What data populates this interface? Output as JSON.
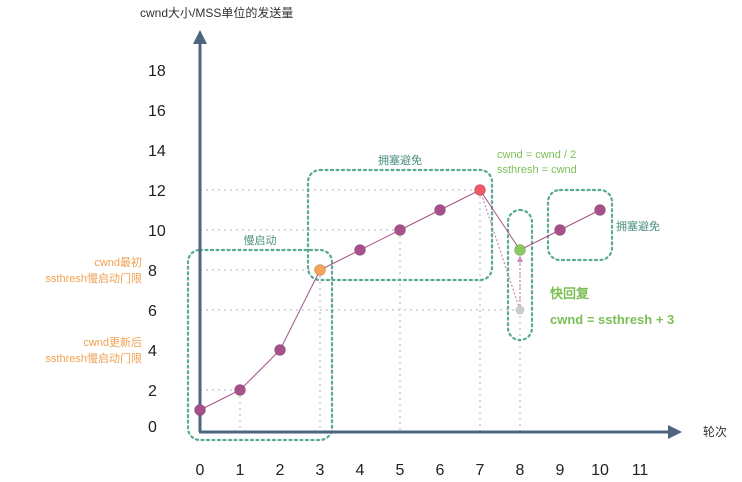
{
  "chart_data": {
    "type": "line",
    "ylabel": "cwnd大小/MSS单位的发送量",
    "xlabel": "轮次",
    "x_ticks": [
      "0",
      "1",
      "2",
      "3",
      "4",
      "5",
      "6",
      "7",
      "8",
      "9",
      "10",
      "11"
    ],
    "y_ticks": [
      "0",
      "2",
      "4",
      "6",
      "8",
      "10",
      "12",
      "14",
      "16",
      "18"
    ],
    "xlim": [
      0,
      11
    ],
    "ylim": [
      0,
      18
    ],
    "series": [
      {
        "values": [
          [
            0,
            1
          ],
          [
            1,
            2
          ],
          [
            2,
            4
          ],
          [
            3,
            8
          ],
          [
            4,
            9
          ],
          [
            5,
            10
          ],
          [
            6,
            11
          ],
          [
            7,
            12
          ],
          [
            8,
            9
          ],
          [
            9,
            10
          ],
          [
            10,
            11
          ]
        ]
      }
    ],
    "highlight_points": [
      {
        "x": 3,
        "y": 8,
        "color": "#f5a45a"
      },
      {
        "x": 7,
        "y": 12,
        "color": "#ef5a6a"
      },
      {
        "x": 8,
        "y": 9,
        "color": "#8cc860"
      },
      {
        "x": 8,
        "y": 6,
        "color": "#cccccc"
      }
    ],
    "regions": [
      {
        "label": "慢启动",
        "x_from": 0,
        "x_to": 3,
        "y_from": 0,
        "y_to": 8
      },
      {
        "label": "拥塞避免",
        "x_from": 3,
        "x_to": 7,
        "y_from": 8,
        "y_to": 12
      },
      {
        "label": "",
        "x_from": 8,
        "x_to": 8,
        "y_from": 5,
        "y_to": 10
      },
      {
        "label": "拥塞避免",
        "x_from": 9,
        "x_to": 10,
        "y_from": 9,
        "y_to": 11
      }
    ],
    "annotations": {
      "initial_line1": "cwnd最初",
      "initial_line2": "ssthresh慢启动门限",
      "updated_line1": "cwnd更新后",
      "updated_line2": "ssthresh慢启动门限",
      "loss_line1": "cwnd = cwnd / 2",
      "loss_line2": "ssthresh = cwnd",
      "fast_recovery": "快回复",
      "fast_recovery_formula": "cwnd = ssthresh + 3"
    },
    "colors": {
      "axis": "#4e6580",
      "line": "#a8508a",
      "marker": "#a8508a",
      "region": "#5aaa8f",
      "guide": "#cccccc"
    }
  }
}
